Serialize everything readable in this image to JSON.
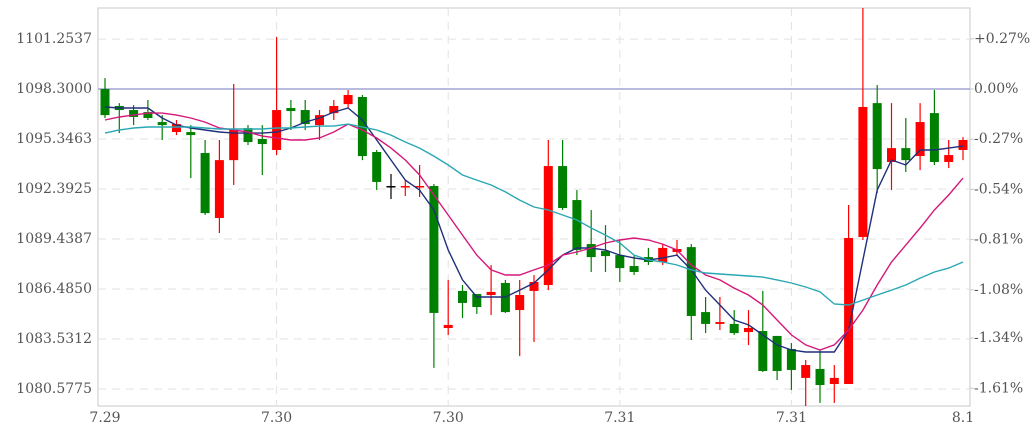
{
  "chart_data": {
    "type": "candlestick",
    "categories": [
      "7.29",
      null,
      null,
      null,
      null,
      null,
      null,
      null,
      null,
      null,
      null,
      null,
      "7.30",
      null,
      null,
      null,
      null,
      null,
      null,
      null,
      null,
      null,
      null,
      null,
      "7.30",
      null,
      null,
      null,
      null,
      null,
      null,
      null,
      null,
      null,
      null,
      null,
      "7.31",
      null,
      null,
      null,
      null,
      null,
      null,
      null,
      null,
      null,
      null,
      null,
      "7.31",
      null,
      null,
      null,
      null,
      null,
      null,
      null,
      null,
      null,
      null,
      null,
      "8.1"
    ],
    "open": [
      1098.3,
      1097.3,
      1097.06,
      1096.94,
      1096.35,
      1095.76,
      1095.76,
      1094.52,
      1090.68,
      1094.1,
      1095.99,
      1095.35,
      1094.7,
      1097.18,
      1097.06,
      1096.17,
      1096.88,
      1097.41,
      1097.83,
      1094.58,
      1092.57,
      1092.51,
      1092.51,
      1092.57,
      1084.18,
      1086.37,
      1086.19,
      1086.13,
      1086.84,
      1085.24,
      1086.37,
      1086.72,
      1093.75,
      1091.74,
      1089.14,
      1088.73,
      1088.49,
      1087.84,
      1088.37,
      1088.08,
      1088.67,
      1088.96,
      1085.12,
      1084.42,
      1084.42,
      1083.94,
      1084.0,
      1083.71,
      1082.94,
      1081.23,
      1081.76,
      1080.87,
      1080.87,
      1089.56,
      1097.47,
      1093.99,
      1094.81,
      1094.34,
      1096.88,
      1093.99,
      1094.7
    ],
    "high": [
      1098.95,
      1097.47,
      1097.35,
      1097.65,
      1096.76,
      1096.47,
      1096.17,
      1095.29,
      1095.29,
      1098.6,
      1096.17,
      1096.17,
      1101.37,
      1097.65,
      1097.65,
      1097.06,
      1097.65,
      1098.24,
      1097.95,
      1094.7,
      1093.28,
      1092.92,
      1093.81,
      1092.69,
      1087.02,
      1086.72,
      1086.19,
      1087.9,
      1087.02,
      1087.02,
      1087.31,
      1095.29,
      1095.29,
      1092.33,
      1091.15,
      1090.26,
      1089.38,
      1088.49,
      1088.91,
      1089.14,
      1089.38,
      1089.14,
      1086.01,
      1086.01,
      1085.24,
      1085.24,
      1086.37,
      1083.71,
      1083.29,
      1082.29,
      1082.88,
      1081.99,
      1091.45,
      1103.09,
      1098.54,
      1097.47,
      1096.59,
      1097.47,
      1098.24,
      1095.29,
      1095.46
    ],
    "low": [
      1096.59,
      1095.7,
      1096.17,
      1096.47,
      1095.29,
      1095.58,
      1093.04,
      1090.86,
      1089.79,
      1092.63,
      1094.99,
      1093.22,
      1094.4,
      1095.88,
      1095.88,
      1095.29,
      1096.47,
      1097.18,
      1094.1,
      1092.33,
      1091.8,
      1091.98,
      1091.92,
      1081.82,
      1083.77,
      1084.77,
      1085.01,
      1084.95,
      1085.07,
      1082.52,
      1083.35,
      1086.42,
      1091.15,
      1088.49,
      1087.49,
      1087.49,
      1086.9,
      1087.31,
      1087.9,
      1087.9,
      1088.43,
      1083.47,
      1083.88,
      1084.06,
      1083.77,
      1083.17,
      1081.58,
      1081.11,
      1080.52,
      1079.57,
      1079.75,
      1079.75,
      1080.87,
      1089.38,
      1092.16,
      1092.33,
      1093.4,
      1093.51,
      1093.81,
      1093.63,
      1094.1
    ],
    "close": [
      1096.76,
      1097.06,
      1096.65,
      1096.59,
      1096.17,
      1096.23,
      1095.58,
      1090.97,
      1094.1,
      1095.88,
      1095.17,
      1095.05,
      1097.06,
      1097.0,
      1096.23,
      1096.76,
      1097.3,
      1097.95,
      1094.34,
      1092.81,
      1092.57,
      1092.57,
      1092.57,
      1085.07,
      1084.36,
      1085.66,
      1085.42,
      1086.31,
      1085.12,
      1086.13,
      1086.9,
      1093.75,
      1091.27,
      1088.79,
      1088.37,
      1088.43,
      1087.72,
      1087.49,
      1088.08,
      1088.91,
      1088.85,
      1084.89,
      1084.42,
      1084.53,
      1083.88,
      1084.18,
      1081.64,
      1081.64,
      1081.7,
      1081.99,
      1080.81,
      1081.23,
      1089.5,
      1097.24,
      1093.57,
      1094.81,
      1094.1,
      1096.35,
      1093.99,
      1094.4,
      1095.29
    ],
    "up_color": "#ff0000",
    "down_color": "#008000",
    "flat_color": "#000000",
    "lines": [
      {
        "color": "#1f2f7a",
        "values": [
          1097.24,
          1097.18,
          1097.18,
          1097.18,
          1096.59,
          1096.17,
          1096.0,
          1095.88,
          1095.76,
          1095.7,
          1095.7,
          1095.7,
          1095.76,
          1096.0,
          1096.35,
          1096.59,
          1096.94,
          1097.18,
          1096.47,
          1095.29,
          1094.11,
          1092.92,
          1092.33,
          1091.15,
          1088.79,
          1087.02,
          1086.01,
          1086.01,
          1086.01,
          1086.42,
          1086.84,
          1087.61,
          1088.49,
          1088.91,
          1088.91,
          1088.79,
          1088.49,
          1088.32,
          1088.2,
          1088.32,
          1088.49,
          1087.61,
          1086.42,
          1085.54,
          1084.65,
          1084.36,
          1083.77,
          1083.18,
          1082.88,
          1082.76,
          1082.76,
          1082.76,
          1084.06,
          1088.2,
          1092.33,
          1094.11,
          1093.81,
          1094.7,
          1094.7,
          1094.81,
          1094.93
        ]
      },
      {
        "color": "#d6177a",
        "values": [
          1096.47,
          1096.65,
          1096.76,
          1096.88,
          1096.88,
          1096.76,
          1096.59,
          1096.35,
          1096.0,
          1095.88,
          1095.76,
          1095.52,
          1095.41,
          1095.29,
          1095.29,
          1095.41,
          1095.76,
          1096.23,
          1095.88,
          1095.41,
          1094.81,
          1094.11,
          1093.22,
          1092.04,
          1090.86,
          1089.67,
          1088.49,
          1087.61,
          1087.31,
          1087.31,
          1087.61,
          1087.9,
          1088.49,
          1088.67,
          1088.91,
          1089.2,
          1089.38,
          1089.5,
          1089.38,
          1089.14,
          1088.79,
          1087.9,
          1087.31,
          1087.02,
          1086.54,
          1086.13,
          1085.54,
          1084.65,
          1083.77,
          1083.18,
          1082.88,
          1083.18,
          1084.06,
          1085.24,
          1086.72,
          1088.08,
          1089.08,
          1090.09,
          1091.15,
          1092.04,
          1093.04
        ]
      },
      {
        "color": "#2aa7b4",
        "values": [
          1095.7,
          1095.88,
          1096.0,
          1096.06,
          1096.06,
          1096.06,
          1096.06,
          1096.0,
          1095.94,
          1095.94,
          1095.94,
          1095.94,
          1096.0,
          1096.0,
          1096.06,
          1096.11,
          1096.11,
          1096.23,
          1096.06,
          1095.88,
          1095.58,
          1095.17,
          1094.81,
          1094.34,
          1093.81,
          1093.22,
          1092.92,
          1092.63,
          1092.22,
          1091.74,
          1091.33,
          1091.15,
          1090.86,
          1090.56,
          1090.09,
          1089.67,
          1089.2,
          1088.49,
          1088.2,
          1088.08,
          1087.9,
          1087.61,
          1087.43,
          1087.37,
          1087.31,
          1087.25,
          1087.19,
          1087.02,
          1086.84,
          1086.6,
          1086.31,
          1085.6,
          1085.54,
          1085.83,
          1086.13,
          1086.42,
          1086.72,
          1087.13,
          1087.49,
          1087.72,
          1088.08
        ]
      }
    ],
    "base_price": 1098.3,
    "base_color": "#a0a4d4",
    "ylim": [
      1079.57,
      1103.09
    ],
    "yticks": [
      1101.2537,
      {
        "value": 1098.3,
        "label": "1098.3000"
      },
      1095.3463,
      1092.3925,
      1089.4387,
      {
        "value": 1086.485,
        "label": "1086.4850"
      },
      1083.5312,
      1080.5775
    ],
    "y2lim": [
      -1.7051,
      0.4357
    ],
    "y2ticks": [
      {
        "value": 0.27,
        "label": "+0.27%"
      },
      {
        "value": 0,
        "label": "0.00%"
      },
      {
        "value": -0.27,
        "label": "-0.27%"
      },
      {
        "value": -0.54,
        "label": "-0.54%"
      },
      {
        "value": -0.81,
        "label": "-0.81%"
      },
      {
        "value": -1.08,
        "label": "-1.08%"
      },
      {
        "value": -1.34,
        "label": "-1.34%"
      },
      {
        "value": -1.61,
        "label": "-1.61%"
      }
    ],
    "grid": true
  }
}
